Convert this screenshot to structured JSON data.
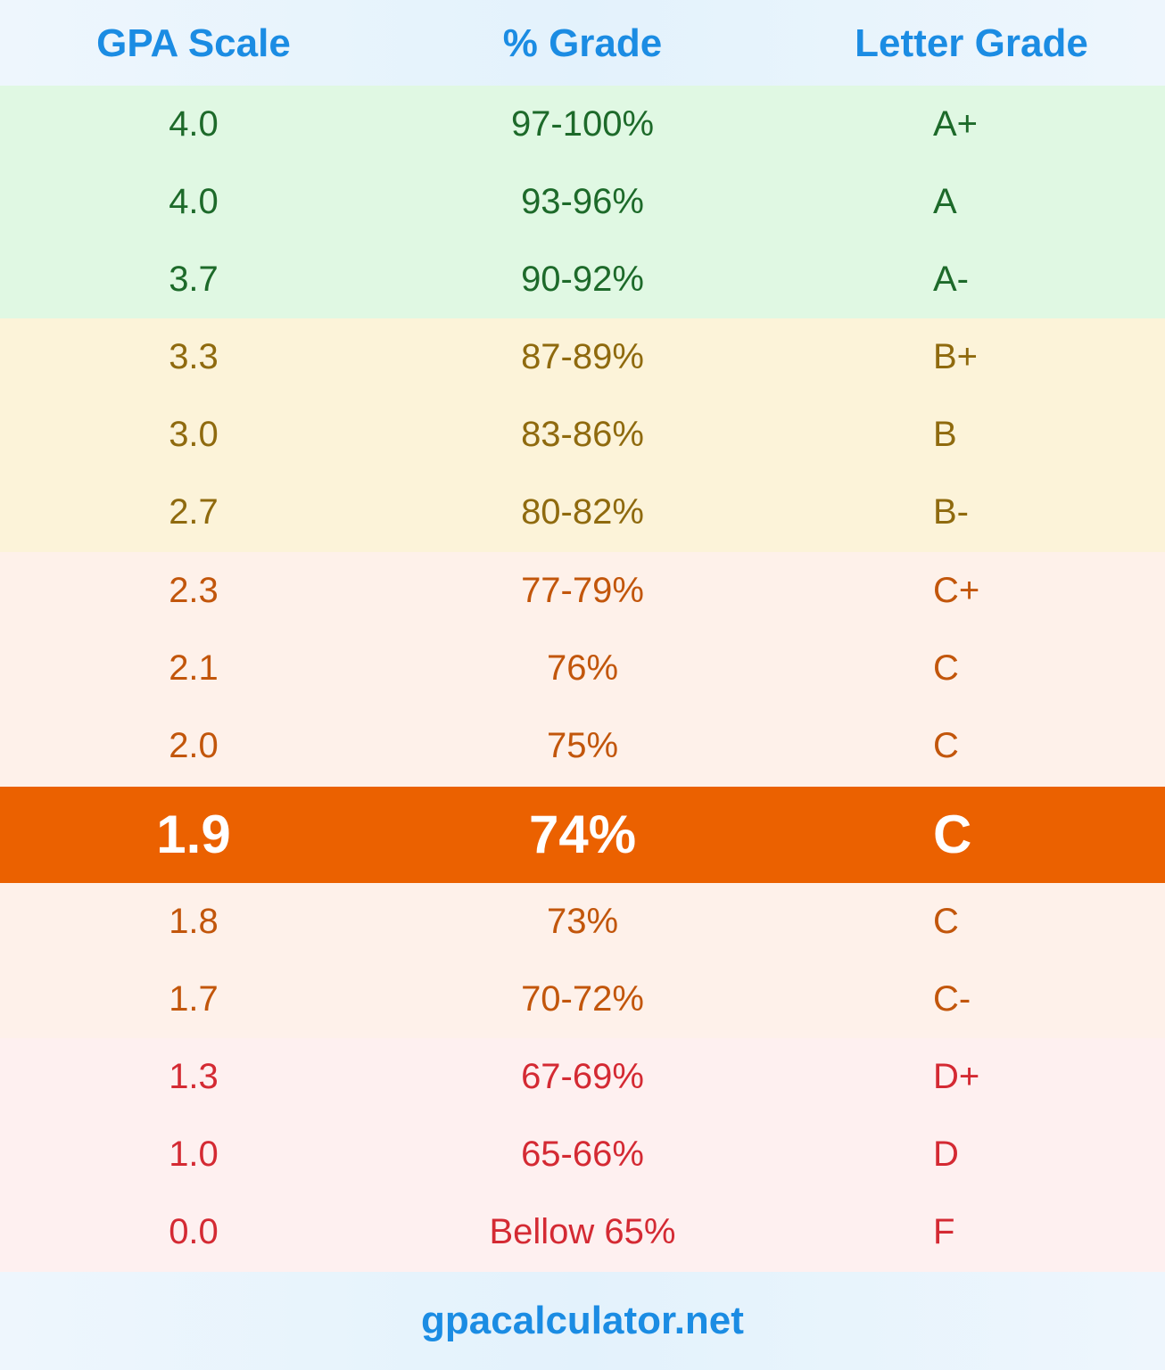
{
  "header": {
    "gpa_label": "GPA Scale",
    "percent_label": "% Grade",
    "letter_label": "Letter Grade"
  },
  "colors": {
    "header_text": "#1b8ce3",
    "green_band": "#e0f8e3",
    "yellow_band": "#fcf3d9",
    "orange_band": "#fef1ea",
    "red_band": "#fef0f0",
    "highlight": "#eb6100"
  },
  "rows": [
    {
      "gpa": "4.0",
      "percent": "97-100%",
      "letter": "A+"
    },
    {
      "gpa": "4.0",
      "percent": "93-96%",
      "letter": "A"
    },
    {
      "gpa": "3.7",
      "percent": "90-92%",
      "letter": "A-"
    },
    {
      "gpa": "3.3",
      "percent": "87-89%",
      "letter": "B+"
    },
    {
      "gpa": "3.0",
      "percent": "83-86%",
      "letter": "B"
    },
    {
      "gpa": "2.7",
      "percent": "80-82%",
      "letter": "B-"
    },
    {
      "gpa": "2.3",
      "percent": "77-79%",
      "letter": "C+"
    },
    {
      "gpa": "2.1",
      "percent": "76%",
      "letter": "C"
    },
    {
      "gpa": "2.0",
      "percent": "75%",
      "letter": "C"
    },
    {
      "gpa": "1.9",
      "percent": "74%",
      "letter": "C"
    },
    {
      "gpa": "1.8",
      "percent": "73%",
      "letter": "C"
    },
    {
      "gpa": "1.7",
      "percent": "70-72%",
      "letter": "C-"
    },
    {
      "gpa": "1.3",
      "percent": "67-69%",
      "letter": "D+"
    },
    {
      "gpa": "1.0",
      "percent": "65-66%",
      "letter": "D"
    },
    {
      "gpa": "0.0",
      "percent": "Bellow 65%",
      "letter": "F"
    }
  ],
  "footer": {
    "site": "gpacalculator.net"
  }
}
